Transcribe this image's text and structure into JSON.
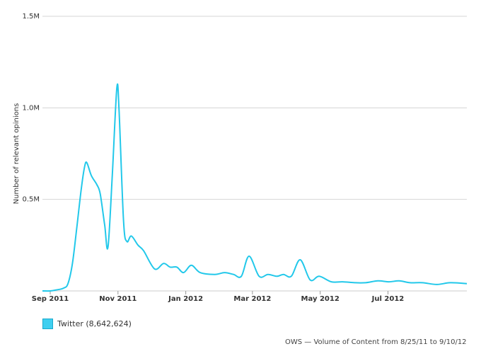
{
  "chart_data": {
    "type": "line",
    "title": "",
    "xlabel": "",
    "ylabel": "Number of relevant opinions",
    "ylim": [
      0,
      1500000
    ],
    "y_ticks": [
      {
        "value": 1500000,
        "label": "1.5M"
      },
      {
        "value": 1000000,
        "label": "1.0M"
      },
      {
        "value": 500000,
        "label": "0.5M"
      }
    ],
    "x_ticks": [
      {
        "date": "2011-09-01",
        "label": "Sep 2011"
      },
      {
        "date": "2011-11-01",
        "label": "Nov 2011"
      },
      {
        "date": "2012-01-01",
        "label": "Jan 2012"
      },
      {
        "date": "2012-03-01",
        "label": "Mar 2012"
      },
      {
        "date": "2012-05-01",
        "label": "May 2012"
      },
      {
        "date": "2012-07-01",
        "label": "Jul 2012"
      }
    ],
    "grid": true,
    "legend_position": "bottom-left",
    "series": [
      {
        "name": "Twitter",
        "total_label": "Twitter (8,642,624)",
        "color": "#22c8ea",
        "points": [
          [
            "2011-08-25",
            0
          ],
          [
            "2011-09-01",
            0
          ],
          [
            "2011-09-06",
            5000
          ],
          [
            "2011-09-13",
            15000
          ],
          [
            "2011-09-17",
            40000
          ],
          [
            "2011-09-21",
            150000
          ],
          [
            "2011-09-25",
            350000
          ],
          [
            "2011-09-29",
            560000
          ],
          [
            "2011-10-02",
            680000
          ],
          [
            "2011-10-04",
            700000
          ],
          [
            "2011-10-08",
            630000
          ],
          [
            "2011-10-13",
            580000
          ],
          [
            "2011-10-16",
            530000
          ],
          [
            "2011-10-20",
            360000
          ],
          [
            "2011-10-23",
            240000
          ],
          [
            "2011-10-27",
            650000
          ],
          [
            "2011-10-31",
            1110000
          ],
          [
            "2011-11-02",
            980000
          ],
          [
            "2011-11-06",
            380000
          ],
          [
            "2011-11-09",
            270000
          ],
          [
            "2011-11-13",
            300000
          ],
          [
            "2011-11-19",
            250000
          ],
          [
            "2011-11-24",
            220000
          ],
          [
            "2011-12-04",
            120000
          ],
          [
            "2011-12-12",
            150000
          ],
          [
            "2011-12-18",
            130000
          ],
          [
            "2011-12-24",
            130000
          ],
          [
            "2011-12-30",
            100000
          ],
          [
            "2012-01-06",
            140000
          ],
          [
            "2012-01-14",
            100000
          ],
          [
            "2012-01-27",
            90000
          ],
          [
            "2012-02-05",
            100000
          ],
          [
            "2012-02-13",
            90000
          ],
          [
            "2012-02-20",
            80000
          ],
          [
            "2012-02-27",
            190000
          ],
          [
            "2012-03-07",
            80000
          ],
          [
            "2012-03-15",
            90000
          ],
          [
            "2012-03-23",
            80000
          ],
          [
            "2012-03-29",
            90000
          ],
          [
            "2012-04-05",
            80000
          ],
          [
            "2012-04-13",
            170000
          ],
          [
            "2012-04-22",
            60000
          ],
          [
            "2012-04-30",
            80000
          ],
          [
            "2012-05-11",
            50000
          ],
          [
            "2012-05-21",
            50000
          ],
          [
            "2012-06-01",
            45000
          ],
          [
            "2012-06-11",
            45000
          ],
          [
            "2012-06-22",
            55000
          ],
          [
            "2012-07-02",
            50000
          ],
          [
            "2012-07-11",
            55000
          ],
          [
            "2012-07-21",
            45000
          ],
          [
            "2012-08-01",
            45000
          ],
          [
            "2012-08-14",
            35000
          ],
          [
            "2012-08-26",
            45000
          ],
          [
            "2012-09-10",
            40000
          ]
        ]
      }
    ]
  },
  "credit_text": "OWS — Volume of Content from 8/25/11 to 9/10/12"
}
